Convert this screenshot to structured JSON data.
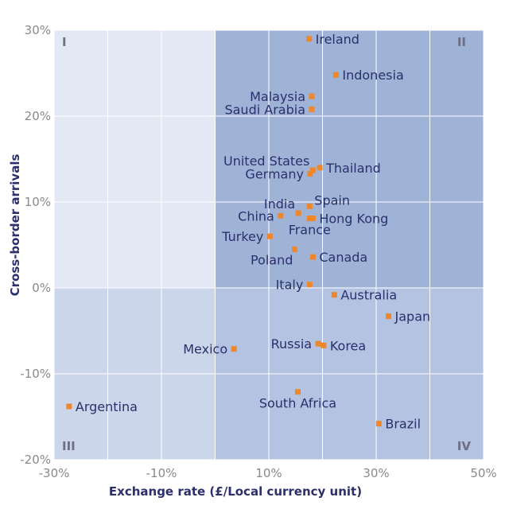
{
  "chart_data": {
    "type": "scatter",
    "title": "",
    "xlabel": "Exchange rate (£/Local currency unit)",
    "ylabel": "Cross-border arrivals",
    "xlim": [
      -30,
      50
    ],
    "ylim": [
      -20,
      30
    ],
    "x_ticks": [
      "-30%",
      "-10%",
      "10%",
      "30%",
      "50%"
    ],
    "y_ticks": [
      "30%",
      "20%",
      "10%",
      "0%",
      "-10%",
      "-20%"
    ],
    "x_tick_values": [
      -30,
      -10,
      10,
      30,
      50
    ],
    "y_tick_values": [
      30,
      20,
      10,
      0,
      -10,
      -20
    ],
    "quadrant_labels": [
      "I",
      "II",
      "III",
      "IV"
    ],
    "quadrant_colors": [
      "#e2e8f4",
      "#9fb3d7",
      "#ccd6ea",
      "#b3c3e1"
    ],
    "marker_color": "#f0862a",
    "grid": true,
    "points": [
      {
        "label": "Ireland",
        "x": 17.5,
        "y": 29,
        "anchor": "right"
      },
      {
        "label": "Indonesia",
        "x": 22.5,
        "y": 24.8,
        "anchor": "right"
      },
      {
        "label": "Malaysia",
        "x": 18,
        "y": 22.3,
        "anchor": "left"
      },
      {
        "label": "Saudi Arabia",
        "x": 18,
        "y": 20.8,
        "anchor": "left"
      },
      {
        "label": "United States",
        "x": 18.2,
        "y": 13.7,
        "anchor": "left-up"
      },
      {
        "label": "Thailand",
        "x": 19.5,
        "y": 14,
        "anchor": "right"
      },
      {
        "label": "Germany",
        "x": 17.7,
        "y": 13.3,
        "anchor": "left"
      },
      {
        "label": "India",
        "x": 15.5,
        "y": 8.7,
        "anchor": "left-up"
      },
      {
        "label": "Spain",
        "x": 17.6,
        "y": 9.5,
        "anchor": "right-up"
      },
      {
        "label": "China",
        "x": 12.2,
        "y": 8.4,
        "anchor": "left"
      },
      {
        "label": "Hong Kong",
        "x": 18.2,
        "y": 8.1,
        "anchor": "right"
      },
      {
        "label": "France",
        "x": 17.6,
        "y": 8.1,
        "anchor": "below"
      },
      {
        "label": "Turkey",
        "x": 10.2,
        "y": 6,
        "anchor": "left"
      },
      {
        "label": "Poland",
        "x": 14.8,
        "y": 4.5,
        "anchor": "left-down"
      },
      {
        "label": "Canada",
        "x": 18.2,
        "y": 3.6,
        "anchor": "right"
      },
      {
        "label": "Italy",
        "x": 17.6,
        "y": 0.4,
        "anchor": "left"
      },
      {
        "label": "Australia",
        "x": 22.2,
        "y": -0.8,
        "anchor": "right"
      },
      {
        "label": "Japan",
        "x": 32.3,
        "y": -3.3,
        "anchor": "right"
      },
      {
        "label": "Mexico",
        "x": 3.5,
        "y": -7.1,
        "anchor": "left"
      },
      {
        "label": "Russia",
        "x": 19.2,
        "y": -6.5,
        "anchor": "left"
      },
      {
        "label": "Korea",
        "x": 20.2,
        "y": -6.7,
        "anchor": "right"
      },
      {
        "label": "Argentina",
        "x": -27.2,
        "y": -13.8,
        "anchor": "right"
      },
      {
        "label": "South Africa",
        "x": 15.4,
        "y": -12.1,
        "anchor": "below"
      },
      {
        "label": "Brazil",
        "x": 30.5,
        "y": -15.8,
        "anchor": "right"
      }
    ]
  }
}
